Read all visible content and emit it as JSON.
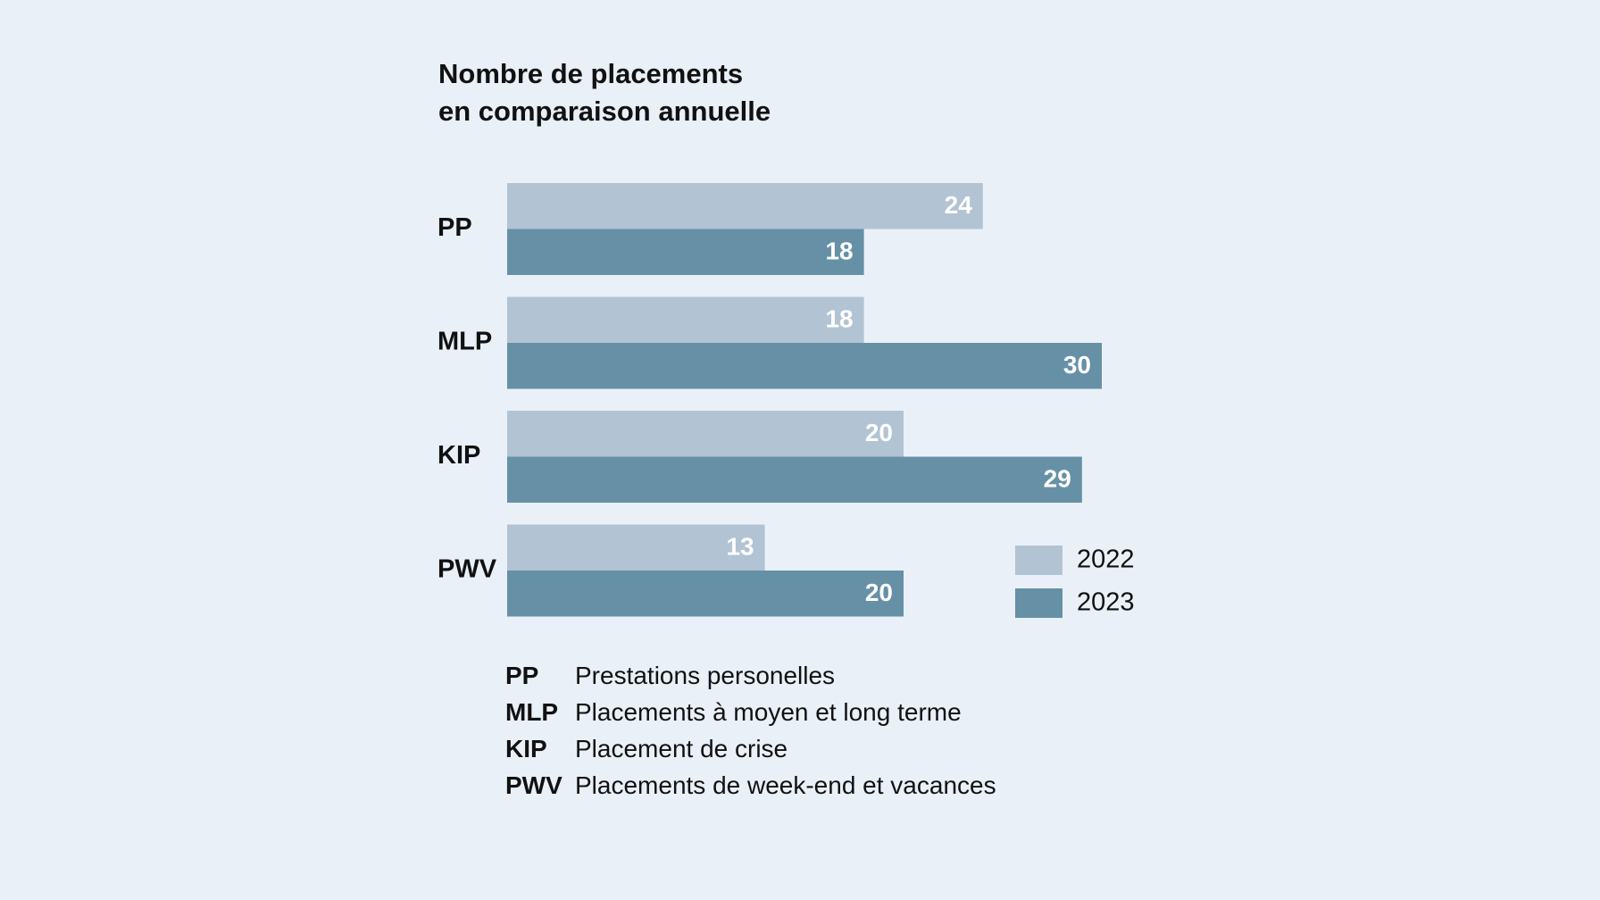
{
  "chart_data": {
    "type": "bar",
    "orientation": "horizontal",
    "title": [
      "Nombre de placements",
      "en comparaison annuelle"
    ],
    "categories": [
      "PP",
      "MLP",
      "KIP",
      "PWV"
    ],
    "series": [
      {
        "name": "2022",
        "values": [
          24,
          18,
          20,
          13
        ],
        "color": "#b2c3d3"
      },
      {
        "name": "2023",
        "values": [
          18,
          30,
          29,
          20
        ],
        "color": "#6690a6"
      }
    ],
    "xlim": [
      0,
      30
    ],
    "grid": false,
    "legend_position": "bottom-right",
    "data_labels": true,
    "abbreviations": [
      {
        "code": "PP",
        "text": "Prestations personelles"
      },
      {
        "code": "MLP",
        "text": "Placements à moyen et long terme"
      },
      {
        "code": "KIP",
        "text": "Placement de crise"
      },
      {
        "code": "PWV",
        "text": "Placements de week-end et vacances"
      }
    ]
  },
  "colors": {
    "background": "#e9f0f8",
    "text": "#111111",
    "value_label": "#ffffff"
  }
}
